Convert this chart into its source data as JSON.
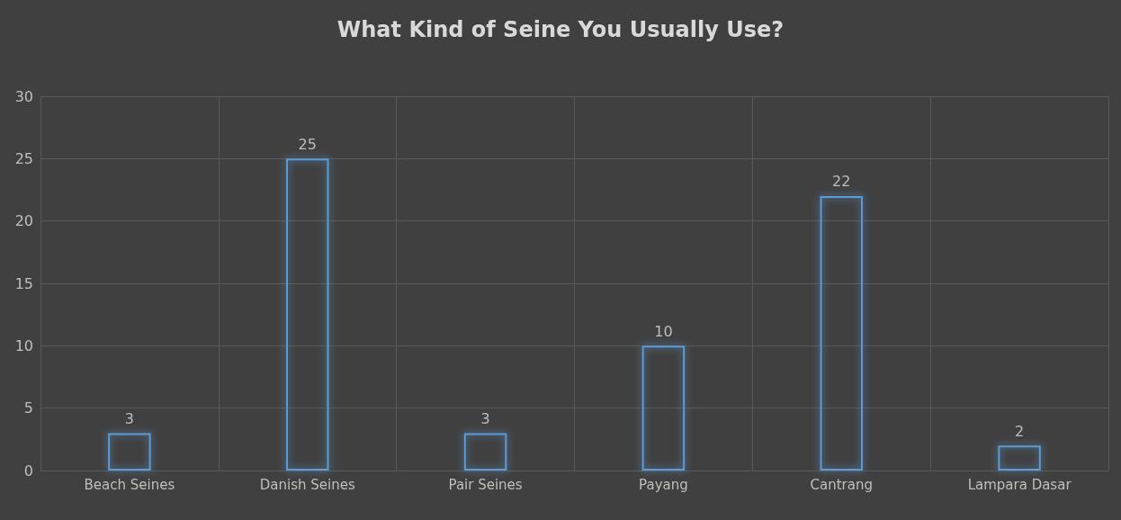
{
  "chart_data": {
    "type": "bar",
    "title": "What Kind of Seine You Usually Use?",
    "categories": [
      "Beach Seines",
      "Danish Seines",
      "Pair Seines",
      "Payang",
      "Cantrang",
      "Lampara Dasar"
    ],
    "values": [
      3,
      25,
      3,
      10,
      22,
      2
    ],
    "color": "#5b9bd5",
    "ylim": [
      0,
      30
    ],
    "yticks": [
      0,
      5,
      10,
      15,
      20,
      25,
      30
    ],
    "grid": true,
    "data_labels": true
  }
}
